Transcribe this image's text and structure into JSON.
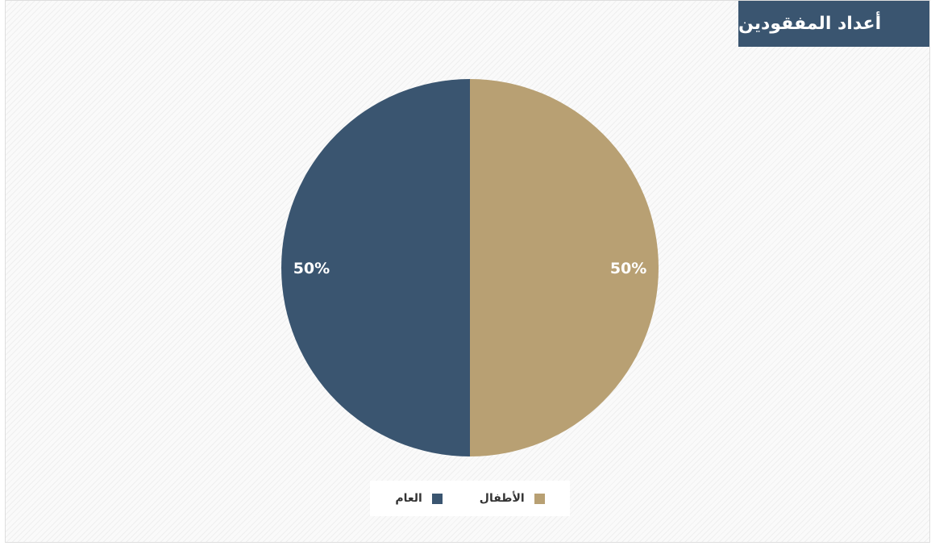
{
  "panel": {
    "title": "أعداد المفقودين",
    "title_bg": "#3a5570"
  },
  "chart_data": {
    "type": "pie",
    "categories": [
      "الأطفال",
      "العام"
    ],
    "values": [
      50,
      50
    ],
    "labels": [
      "50%",
      "50%"
    ],
    "colors": [
      "#b8a073",
      "#3a5570"
    ],
    "start_direction": "12 o'clock",
    "direction": "clockwise",
    "legend": {
      "placement": "bottom-center",
      "items": [
        {
          "label": "العام",
          "color": "#3a5570"
        },
        {
          "label": "الأطفال",
          "color": "#b8a073"
        }
      ]
    }
  }
}
